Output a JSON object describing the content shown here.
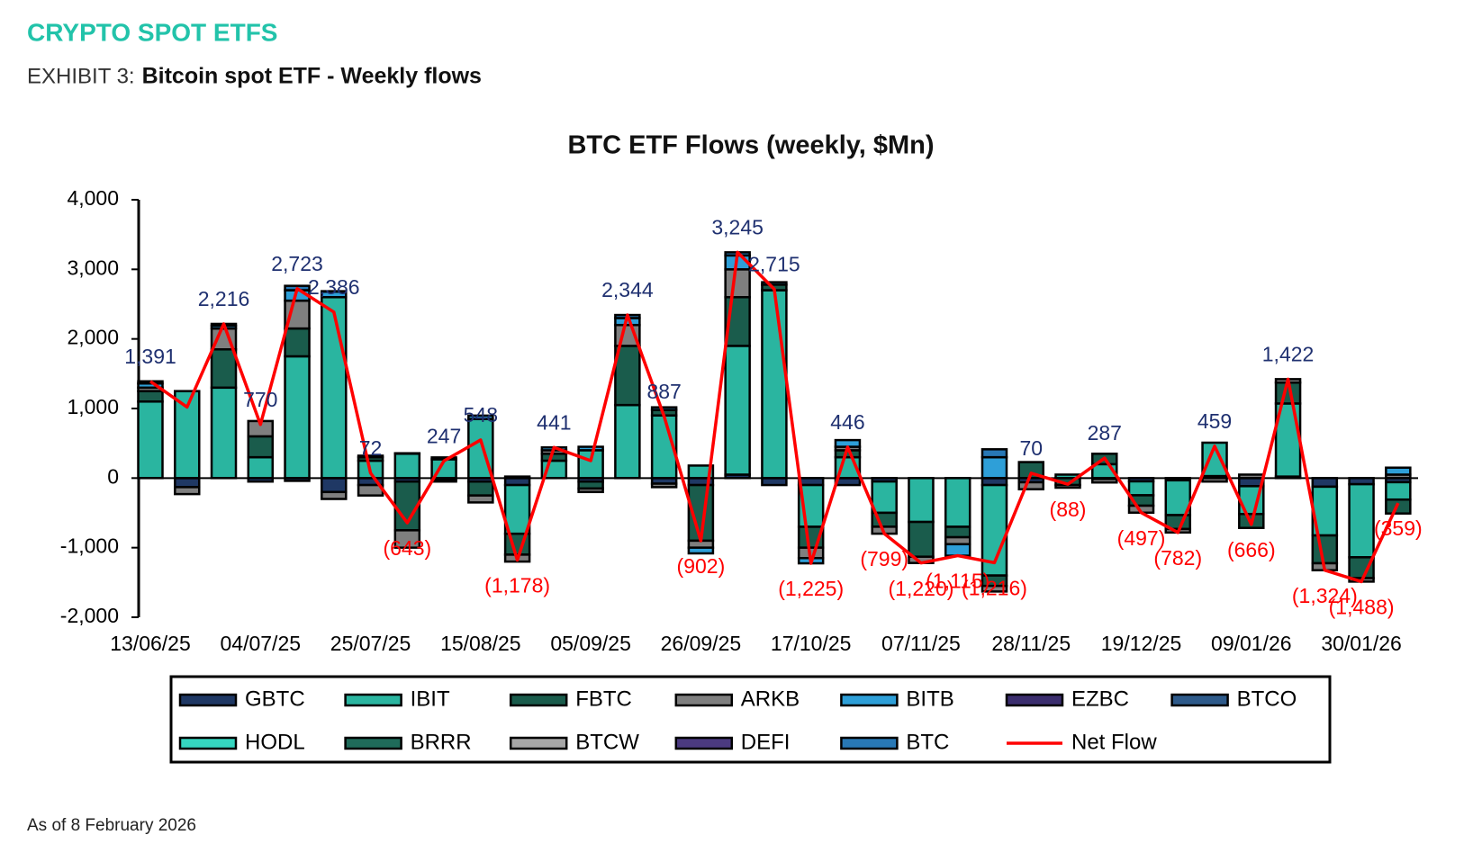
{
  "header": {
    "section": "CRYPTO SPOT ETFS",
    "exhibit": "EXHIBIT 3:",
    "title": "Bitcoin spot ETF - Weekly flows"
  },
  "footer": {
    "note": "As of 8 February 2026"
  },
  "chart_data": {
    "type": "bar",
    "stacked": true,
    "title": "BTC ETF Flows (weekly, $Mn)",
    "categories": [
      "13/06/25",
      null,
      null,
      "04/07/25",
      null,
      null,
      "25/07/25",
      null,
      null,
      "15/08/25",
      null,
      null,
      "05/09/25",
      null,
      null,
      "26/09/25",
      null,
      null,
      "17/10/25",
      null,
      null,
      "07/11/25",
      null,
      null,
      "28/11/25",
      null,
      null,
      "19/12/25",
      null,
      null,
      "09/01/26",
      null,
      null,
      "30/01/26",
      null
    ],
    "ylim": [
      -2000,
      4000
    ],
    "yticks": [
      {
        "value": -2000,
        "label": "-2,000"
      },
      {
        "value": -1000,
        "label": "-1,000"
      },
      0,
      {
        "value": 1000,
        "label": "1,000"
      },
      {
        "value": 2000,
        "label": "2,000"
      },
      {
        "value": 3000,
        "label": "3,000"
      },
      {
        "value": 4000,
        "label": "4,000"
      }
    ],
    "series": [
      {
        "name": "GBTC",
        "color": "#1f3864",
        "values": [
          0,
          -130,
          0,
          -50,
          -40,
          -200,
          -100,
          -50,
          -20,
          -50,
          -100,
          0,
          -50,
          0,
          -80,
          -100,
          50,
          -100,
          -100,
          -100,
          -49,
          0,
          0,
          -100,
          -60,
          0,
          -13,
          -47,
          -32,
          29,
          -116,
          22,
          -124,
          -88,
          -59
        ]
      },
      {
        "name": "IBIT",
        "color": "#2ab5a0",
        "values": [
          1100,
          1250,
          1300,
          300,
          1750,
          2600,
          250,
          350,
          270,
          850,
          -700,
          250,
          400,
          1050,
          900,
          180,
          1850,
          2700,
          -600,
          300,
          -450,
          -630,
          -700,
          -1300,
          0,
          50,
          200,
          -200,
          -500,
          480,
          -400,
          1050,
          -700,
          -1050,
          -250
        ]
      },
      {
        "name": "FBTC",
        "color": "#1a5c4c",
        "values": [
          150,
          0,
          550,
          300,
          400,
          0,
          50,
          -700,
          0,
          -200,
          -300,
          100,
          -100,
          850,
          80,
          -800,
          700,
          80,
          -300,
          100,
          -200,
          -500,
          -150,
          -150,
          230,
          -100,
          150,
          -150,
          -200,
          0,
          -200,
          300,
          -400,
          -300,
          -200
        ]
      },
      {
        "name": "ARKB",
        "color": "#7f7f7f",
        "values": [
          50,
          -100,
          300,
          220,
          400,
          -100,
          -150,
          -250,
          -30,
          -100,
          -100,
          50,
          -50,
          300,
          -50,
          -100,
          400,
          0,
          -150,
          50,
          -100,
          -90,
          -100,
          -80,
          -100,
          -38,
          -50,
          -100,
          -50,
          -50,
          50,
          50,
          -100,
          -50,
          50
        ]
      },
      {
        "name": "BITB",
        "color": "#2e9fd8",
        "values": [
          60,
          0,
          40,
          0,
          150,
          80,
          22,
          7,
          27,
          48,
          22,
          41,
          50,
          100,
          37,
          -82,
          200,
          35,
          -75,
          96,
          0,
          0,
          -165,
          300,
          0,
          0,
          0,
          0,
          0,
          0,
          0,
          0,
          0,
          0,
          100
        ]
      },
      {
        "name": "EZBC",
        "color": "#3b2e6e",
        "values": [
          0,
          0,
          0,
          0,
          0,
          0,
          0,
          0,
          0,
          0,
          0,
          0,
          0,
          0,
          0,
          0,
          0,
          0,
          0,
          0,
          0,
          0,
          0,
          0,
          0,
          0,
          0,
          0,
          0,
          0,
          0,
          0,
          0,
          0,
          0
        ]
      },
      {
        "name": "BTCO",
        "color": "#2e5a8a",
        "values": [
          0,
          0,
          0,
          0,
          0,
          0,
          0,
          0,
          0,
          0,
          0,
          0,
          0,
          0,
          0,
          0,
          0,
          0,
          0,
          0,
          0,
          0,
          0,
          0,
          0,
          0,
          0,
          0,
          0,
          0,
          0,
          0,
          0,
          0,
          0
        ]
      },
      {
        "name": "HODL",
        "color": "#35d6c0",
        "values": [
          0,
          0,
          0,
          0,
          0,
          0,
          0,
          0,
          0,
          0,
          0,
          0,
          0,
          0,
          0,
          0,
          0,
          0,
          0,
          0,
          0,
          0,
          0,
          0,
          0,
          0,
          0,
          0,
          0,
          0,
          0,
          0,
          0,
          0,
          0
        ]
      },
      {
        "name": "BRRR",
        "color": "#1f6b5a",
        "values": [
          0,
          0,
          0,
          0,
          0,
          0,
          0,
          0,
          0,
          0,
          0,
          0,
          0,
          0,
          0,
          0,
          0,
          0,
          0,
          0,
          0,
          0,
          0,
          0,
          0,
          0,
          0,
          0,
          0,
          0,
          0,
          0,
          0,
          0,
          0
        ]
      },
      {
        "name": "BTCW",
        "color": "#a6a6a6",
        "values": [
          0,
          0,
          0,
          0,
          0,
          0,
          0,
          0,
          0,
          0,
          0,
          0,
          0,
          0,
          0,
          0,
          0,
          0,
          0,
          0,
          0,
          0,
          0,
          0,
          0,
          0,
          0,
          0,
          0,
          0,
          0,
          0,
          0,
          0,
          0
        ]
      },
      {
        "name": "DEFI",
        "color": "#4b3a80",
        "values": [
          0,
          0,
          0,
          0,
          0,
          0,
          0,
          0,
          0,
          0,
          0,
          0,
          0,
          0,
          0,
          0,
          0,
          0,
          0,
          0,
          0,
          0,
          0,
          0,
          0,
          0,
          0,
          0,
          0,
          0,
          0,
          0,
          0,
          0,
          0
        ]
      },
      {
        "name": "BTC",
        "color": "#2878b5",
        "values": [
          31,
          0,
          26,
          0,
          63,
          6,
          0,
          0,
          0,
          0,
          0,
          0,
          0,
          44,
          0,
          0,
          45,
          0,
          0,
          0,
          0,
          0,
          0,
          114,
          0,
          0,
          0,
          0,
          0,
          0,
          0,
          0,
          0,
          0,
          0
        ]
      }
    ],
    "line": {
      "name": "Net Flow",
      "color": "#ff0000",
      "values": [
        1391,
        1020,
        2216,
        770,
        2723,
        2386,
        72,
        -643,
        247,
        548,
        -1178,
        441,
        250,
        2344,
        887,
        -902,
        3245,
        2715,
        -1225,
        446,
        -799,
        -1220,
        -1115,
        -1216,
        70,
        -88,
        287,
        -497,
        -782,
        459,
        -666,
        1422,
        -1324,
        -1488,
        -359
      ],
      "value_labels": [
        "1,391",
        null,
        "2,216",
        "770",
        "2,723",
        "2,386",
        "72",
        "(643)",
        "247",
        "548",
        "(1,178)",
        "441",
        null,
        "2,344",
        "887",
        "(902)",
        "3,245",
        "2,715",
        "(1,225)",
        "446",
        "(799)",
        "(1,220)",
        "(1,115)",
        "(1,216)",
        "70",
        "(88)",
        "287",
        "(497)",
        "(782)",
        "459",
        "(666)",
        "1,422",
        "(1,324)",
        "(1,488)",
        "(359)"
      ]
    },
    "legend_order": [
      "GBTC",
      "IBIT",
      "FBTC",
      "ARKB",
      "BITB",
      "EZBC",
      "BTCO",
      "HODL",
      "BRRR",
      "BTCW",
      "DEFI",
      "BTC"
    ]
  }
}
